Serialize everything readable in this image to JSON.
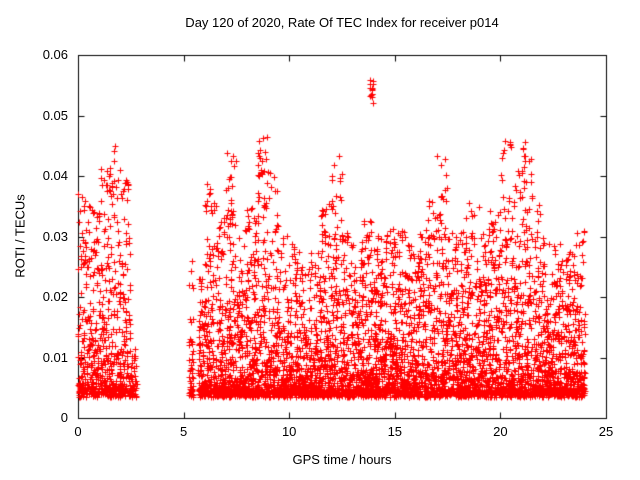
{
  "chart_data": {
    "type": "scatter",
    "title": "Day 120 of 2020, Rate Of TEC Index for receiver p014",
    "xlabel": "GPS time / hours",
    "ylabel": "ROTI / TECUs",
    "xlim": [
      0,
      25
    ],
    "ylim": [
      0,
      0.06
    ],
    "xtick_values": [
      0,
      5,
      10,
      15,
      20,
      25
    ],
    "xtick_labels": [
      "0",
      "5",
      "10",
      "15",
      "20",
      "25"
    ],
    "ytick_values": [
      0,
      0.01,
      0.02,
      0.03,
      0.04,
      0.05,
      0.06
    ],
    "ytick_labels": [
      "0",
      "0.01",
      "0.02",
      "0.03",
      "0.04",
      "0.05",
      "0.06"
    ],
    "grid": false,
    "legend": "none",
    "marker": {
      "shape": "plus",
      "color": "#ff0000",
      "size": 7
    },
    "border_color": "#000000",
    "background": "#ffffff",
    "point_floor": 0.004,
    "density_exponent": 2.8,
    "seed": 42,
    "bins_format": [
      "x_start_hours",
      "x_end_hours",
      "point_count",
      "max_roti"
    ],
    "bins": [
      [
        0.0,
        0.5,
        130,
        0.038
      ],
      [
        0.5,
        1.0,
        130,
        0.036
      ],
      [
        1.0,
        1.5,
        140,
        0.042
      ],
      [
        1.5,
        2.0,
        140,
        0.046
      ],
      [
        2.0,
        2.5,
        120,
        0.04
      ],
      [
        2.5,
        2.8,
        40,
        0.012
      ],
      [
        5.25,
        5.45,
        45,
        0.027
      ],
      [
        5.7,
        6.0,
        90,
        0.024
      ],
      [
        6.0,
        6.5,
        140,
        0.039
      ],
      [
        6.5,
        7.0,
        140,
        0.035
      ],
      [
        7.0,
        7.5,
        150,
        0.045
      ],
      [
        7.5,
        8.0,
        140,
        0.031
      ],
      [
        8.0,
        8.5,
        150,
        0.036
      ],
      [
        8.5,
        9.0,
        150,
        0.047
      ],
      [
        9.0,
        9.5,
        150,
        0.041
      ],
      [
        9.5,
        10.0,
        140,
        0.031
      ],
      [
        10.0,
        10.5,
        140,
        0.029
      ],
      [
        10.5,
        11.0,
        140,
        0.026
      ],
      [
        11.0,
        11.5,
        140,
        0.028
      ],
      [
        11.5,
        12.0,
        150,
        0.036
      ],
      [
        12.0,
        12.5,
        150,
        0.044
      ],
      [
        12.5,
        13.0,
        140,
        0.031
      ],
      [
        13.0,
        13.5,
        140,
        0.029
      ],
      [
        13.5,
        14.0,
        150,
        0.033
      ],
      [
        14.0,
        14.5,
        140,
        0.031
      ],
      [
        14.5,
        15.0,
        150,
        0.032
      ],
      [
        15.0,
        15.5,
        150,
        0.031
      ],
      [
        15.5,
        16.0,
        140,
        0.029
      ],
      [
        16.0,
        16.5,
        140,
        0.031
      ],
      [
        16.5,
        17.0,
        140,
        0.036
      ],
      [
        17.0,
        17.5,
        150,
        0.044
      ],
      [
        17.5,
        18.0,
        140,
        0.031
      ],
      [
        18.0,
        18.5,
        140,
        0.033
      ],
      [
        18.5,
        19.0,
        150,
        0.036
      ],
      [
        19.0,
        19.5,
        140,
        0.031
      ],
      [
        19.5,
        20.0,
        140,
        0.034
      ],
      [
        20.0,
        20.5,
        150,
        0.046
      ],
      [
        20.5,
        21.0,
        150,
        0.041
      ],
      [
        21.0,
        21.5,
        150,
        0.046
      ],
      [
        21.5,
        22.0,
        140,
        0.036
      ],
      [
        22.0,
        22.5,
        140,
        0.031
      ],
      [
        22.5,
        23.0,
        140,
        0.029
      ],
      [
        23.0,
        23.5,
        140,
        0.028
      ],
      [
        23.5,
        24.0,
        130,
        0.031
      ]
    ],
    "outlier_clusters_format": [
      "x_start",
      "x_end",
      "point_count",
      "y_min",
      "y_max"
    ],
    "outlier_clusters": [
      [
        13.82,
        13.98,
        14,
        0.052,
        0.056
      ]
    ],
    "data_gaps_hours": [
      [
        2.8,
        5.25
      ],
      [
        5.45,
        5.7
      ]
    ]
  }
}
